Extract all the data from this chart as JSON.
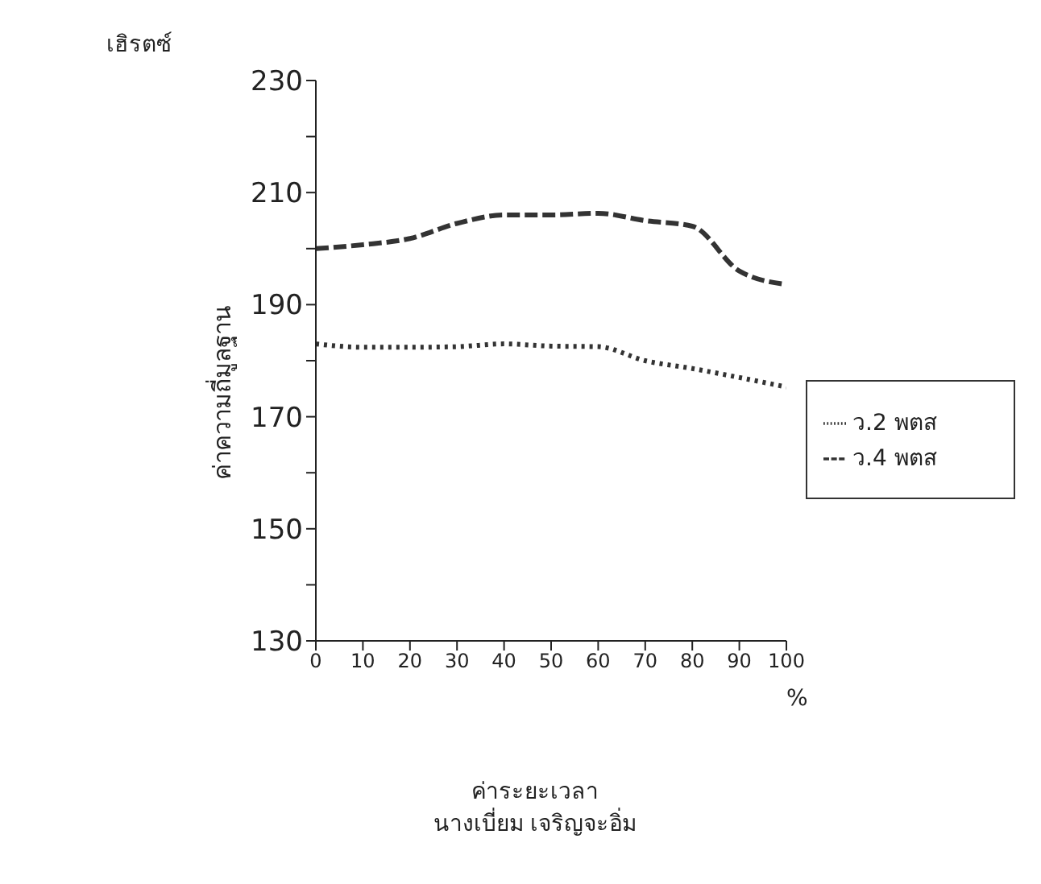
{
  "chart_data": {
    "type": "line",
    "xlabel": "ค่าระยะเวลา",
    "ylabel": "ค่าความถี่มูลฐาน",
    "annotations": [
      "เฮิรตซ์",
      "%",
      "นางเบี่ยม เจริญจะอิ่ม"
    ],
    "x": [
      0,
      10,
      20,
      30,
      40,
      50,
      60,
      70,
      80,
      90,
      100
    ],
    "series": [
      {
        "name": "ว.2 พตส",
        "color": "#333333",
        "line_style": "dotted",
        "values": [
          183,
          182.4,
          182.4,
          182.5,
          183,
          182.6,
          182.5,
          180,
          178.6,
          177,
          175.3
        ]
      },
      {
        "name": "ว.4 พตส",
        "color": "#333333",
        "line_style": "dashed",
        "values": [
          200,
          200.7,
          201.8,
          204.5,
          206,
          206,
          206.3,
          205,
          204,
          196,
          193.6
        ]
      }
    ],
    "xlim": [
      0,
      100
    ],
    "xticks": [
      0,
      10,
      20,
      30,
      40,
      50,
      60,
      70,
      80,
      90,
      100
    ],
    "ylim": [
      130,
      230
    ],
    "yticks": [
      130,
      {
        "value": 140,
        "label": null
      },
      150,
      {
        "value": 160,
        "label": null
      },
      170,
      {
        "value": 180,
        "label": null
      },
      190,
      {
        "value": 200,
        "label": null
      },
      210,
      {
        "value": 220,
        "label": null
      },
      230
    ],
    "grid": false,
    "legend": "right",
    "marker": "none"
  }
}
